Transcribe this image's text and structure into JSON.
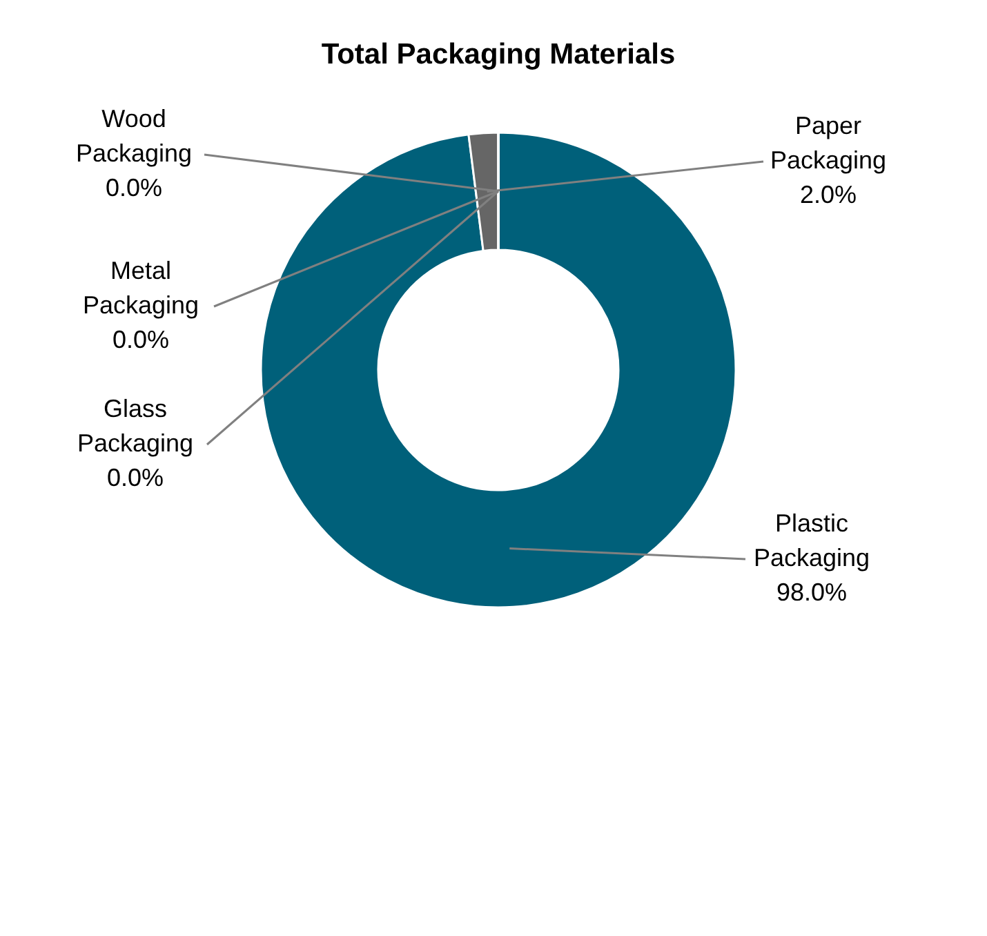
{
  "chart_data": {
    "type": "donut",
    "title": "Total Packaging Materials",
    "categories": [
      "Plastic Packaging",
      "Paper Packaging",
      "Glass Packaging",
      "Metal Packaging",
      "Wood Packaging"
    ],
    "values": [
      98,
      2,
      0,
      0,
      0
    ],
    "colors": [
      "#00607a",
      "#666666",
      "#a5a5a5",
      "#4f81bd",
      "#8fb3c7"
    ],
    "value_labels": [
      "98.0%",
      "2.0%",
      "0.0%",
      "0.0%",
      "0.0%"
    ]
  }
}
